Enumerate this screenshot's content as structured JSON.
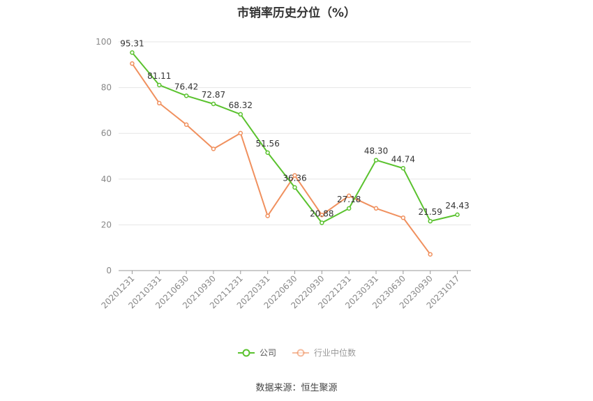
{
  "chart_data": {
    "type": "line",
    "title": "市销率历史分位（%）",
    "xlabel": "",
    "ylabel": "",
    "ylim": [
      0,
      100
    ],
    "yticks": [
      0,
      20,
      40,
      60,
      80,
      100
    ],
    "grid": true,
    "legend_position": "bottom",
    "categories": [
      "20201231",
      "20210331",
      "20210630",
      "20210930",
      "20211231",
      "20220331",
      "20220630",
      "20220930",
      "20221231",
      "20230331",
      "20230630",
      "20230930",
      "20231017"
    ],
    "series": [
      {
        "name": "公司",
        "color": "#5ac22e",
        "values": [
          95.31,
          81.11,
          76.42,
          72.87,
          68.32,
          51.56,
          36.36,
          20.88,
          27.18,
          48.3,
          44.74,
          21.59,
          24.43
        ],
        "labels": [
          "95.31",
          "81.11",
          "76.42",
          "72.87",
          "68.32",
          "51.56",
          "36.36",
          "20.88",
          "27.18",
          "48.30",
          "44.74",
          "21.59",
          "24.43"
        ]
      },
      {
        "name": "行业中位数",
        "color": "#f0905e",
        "values": [
          90.5,
          73.2,
          63.8,
          53.2,
          60.1,
          23.9,
          41.6,
          24.3,
          32.7,
          27.2,
          23.1,
          7.1,
          null
        ]
      }
    ]
  },
  "source": "数据来源：恒生聚源"
}
